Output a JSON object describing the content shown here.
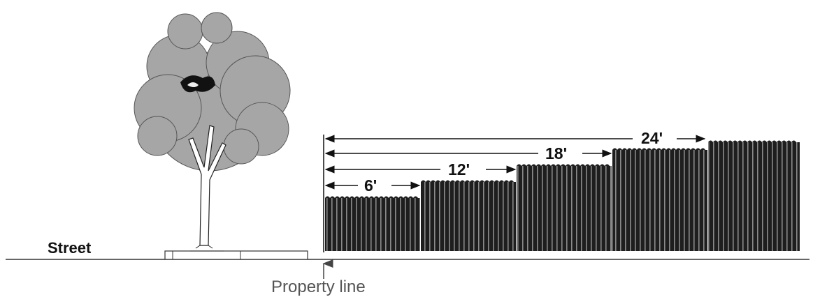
{
  "labels": {
    "street": "Street",
    "property_line": "Property line"
  },
  "dimensions": [
    {
      "label": "6'"
    },
    {
      "label": "12'"
    },
    {
      "label": "18'"
    },
    {
      "label": "24'"
    }
  ],
  "colors": {
    "foliage": "#a6a6a6",
    "fence": "#1e1e1e",
    "line": "#222222",
    "property_label": "#555555"
  }
}
